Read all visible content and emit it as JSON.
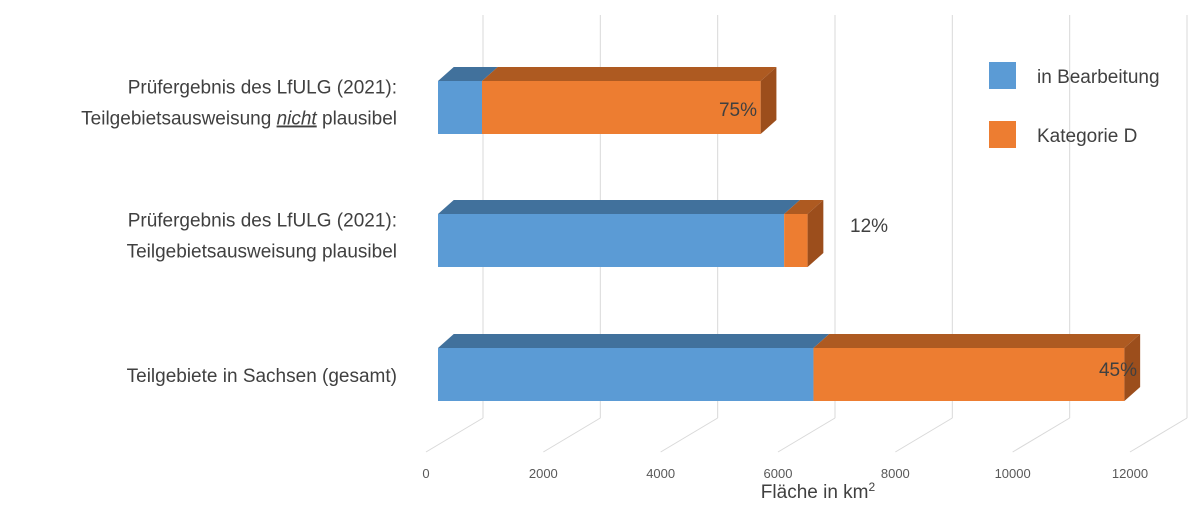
{
  "chart_data": {
    "type": "bar",
    "orientation": "horizontal",
    "stacked": true,
    "style_3d": true,
    "categories": [
      {
        "lines": [
          [
            {
              "text": "Prüfergebnis des LfULG (2021):",
              "italic_underline": false
            }
          ],
          [
            {
              "text": "Teilgebietsausweisung ",
              "italic_underline": false
            },
            {
              "text": "nicht",
              "italic_underline": true
            },
            {
              "text": " plausibel",
              "italic_underline": false
            }
          ]
        ]
      },
      {
        "lines": [
          [
            {
              "text": "Prüfergebnis des LfULG (2021):",
              "italic_underline": false
            }
          ],
          [
            {
              "text": "Teilgebietsausweisung plausibel",
              "italic_underline": false
            }
          ]
        ]
      },
      {
        "lines": [
          [
            {
              "text": "Teilgebiete in Sachsen (gesamt)",
              "italic_underline": false
            }
          ]
        ]
      }
    ],
    "series": [
      {
        "name": "in Bearbeitung",
        "color": "#5b9bd5",
        "top_color": "#41719c",
        "side_color": "#2e5f8f",
        "values": [
          750,
          5900,
          6400
        ]
      },
      {
        "name": "Kategorie D",
        "color": "#ed7d31",
        "top_color": "#ae5a21",
        "side_color": "#9c4e1c",
        "values": [
          4750,
          400,
          5300
        ]
      }
    ],
    "data_labels": [
      "75%",
      "12%",
      "45%"
    ],
    "xlim": [
      0,
      12000
    ],
    "xticks": [
      0,
      2000,
      4000,
      6000,
      8000,
      10000,
      12000
    ],
    "xtick_labels": [
      "0",
      "2000",
      "4000",
      "6000",
      "8000",
      "10000",
      "12000"
    ],
    "xlabel": "Fläche in km",
    "xlabel_superscript": "2",
    "legend_position": "top-right",
    "grid": true
  }
}
